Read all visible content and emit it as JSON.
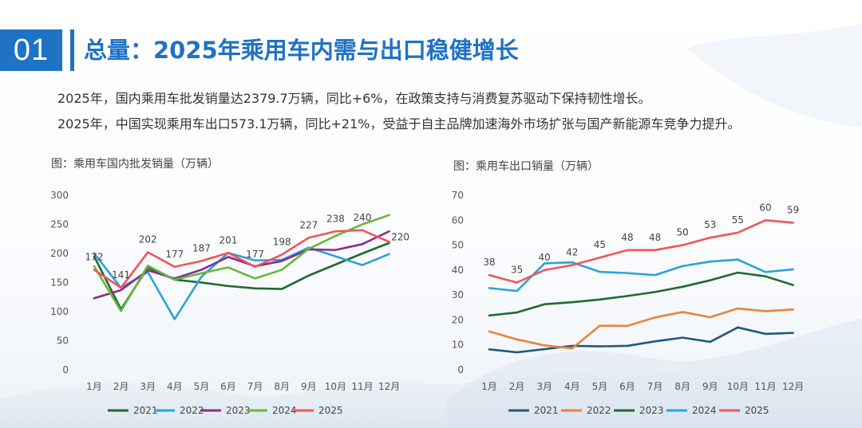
{
  "header": {
    "section_number": "01",
    "title": "总量：2025年乘用车内需与出口稳健增长"
  },
  "summary": {
    "line1": "2025年，国内乘用车批发销量达2379.7万辆，同比+6%，在政策支持与消费复苏驱动下保持韧性增长。",
    "line2": "2025年，中国实现乘用车出口573.1万辆，同比+21%，受益于自主品牌加速海外市场扩张与国产新能源车竞争力提升。"
  },
  "chart_data": [
    {
      "type": "line",
      "title": "图：乘用车国内批发销量（万辆）",
      "categories": [
        "1月",
        "2月",
        "3月",
        "4月",
        "5月",
        "6月",
        "7月",
        "8月",
        "9月",
        "10月",
        "11月",
        "12月"
      ],
      "ylim": [
        0,
        300
      ],
      "yticks": [
        0,
        50,
        100,
        150,
        200,
        250,
        300
      ],
      "series": [
        {
          "name": "2021",
          "color": "#1e6b33",
          "values": [
            195,
            104,
            176,
            155,
            150,
            144,
            140,
            139,
            162,
            181,
            200,
            218
          ]
        },
        {
          "name": "2022",
          "color": "#2aa3d8",
          "values": [
            200,
            141,
            168,
            87,
            160,
            201,
            188,
            189,
            210,
            195,
            180,
            199
          ]
        },
        {
          "name": "2023",
          "color": "#8a2b8f",
          "values": [
            123,
            137,
            171,
            157,
            172,
            194,
            178,
            187,
            207,
            206,
            216,
            238
          ]
        },
        {
          "name": "2024",
          "color": "#66b83c",
          "values": [
            178,
            101,
            179,
            155,
            166,
            176,
            157,
            172,
            208,
            230,
            250,
            266
          ]
        },
        {
          "name": "2025",
          "color": "#f2545b",
          "values": [
            172,
            141,
            202,
            177,
            187,
            201,
            177,
            198,
            227,
            238,
            240,
            220
          ]
        }
      ],
      "data_labels_series": "2025"
    },
    {
      "type": "line",
      "title": "图：乘用车出口销量（万辆）",
      "categories": [
        "1月",
        "2月",
        "3月",
        "4月",
        "5月",
        "6月",
        "7月",
        "8月",
        "9月",
        "10月",
        "11月",
        "12月"
      ],
      "ylim": [
        0,
        70
      ],
      "yticks": [
        0,
        10,
        20,
        30,
        40,
        50,
        60,
        70
      ],
      "series": [
        {
          "name": "2021",
          "color": "#1f5b7a",
          "values": [
            8.2,
            7.0,
            8.3,
            9.6,
            9.4,
            9.6,
            11.4,
            12.9,
            11.2,
            17.0,
            14.4,
            14.8
          ]
        },
        {
          "name": "2022",
          "color": "#e8833a",
          "values": [
            15.4,
            12.2,
            9.8,
            8.6,
            17.7,
            17.6,
            21.0,
            23.2,
            21.1,
            24.6,
            23.5,
            24.2
          ]
        },
        {
          "name": "2023",
          "color": "#1e6b33",
          "values": [
            21.8,
            23.0,
            26.3,
            27.1,
            28.2,
            29.6,
            31.2,
            33.3,
            35.9,
            39.0,
            37.5,
            34.0
          ]
        },
        {
          "name": "2024",
          "color": "#2aa3d8",
          "values": [
            32.8,
            31.6,
            42.7,
            43.1,
            39.3,
            38.8,
            38.0,
            41.6,
            43.4,
            44.2,
            39.2,
            40.3
          ]
        },
        {
          "name": "2025",
          "color": "#f2545b",
          "values": [
            38,
            35,
            40,
            42,
            45,
            48,
            48,
            50,
            53,
            55,
            60,
            59
          ]
        }
      ],
      "data_labels_series": "2025"
    }
  ]
}
